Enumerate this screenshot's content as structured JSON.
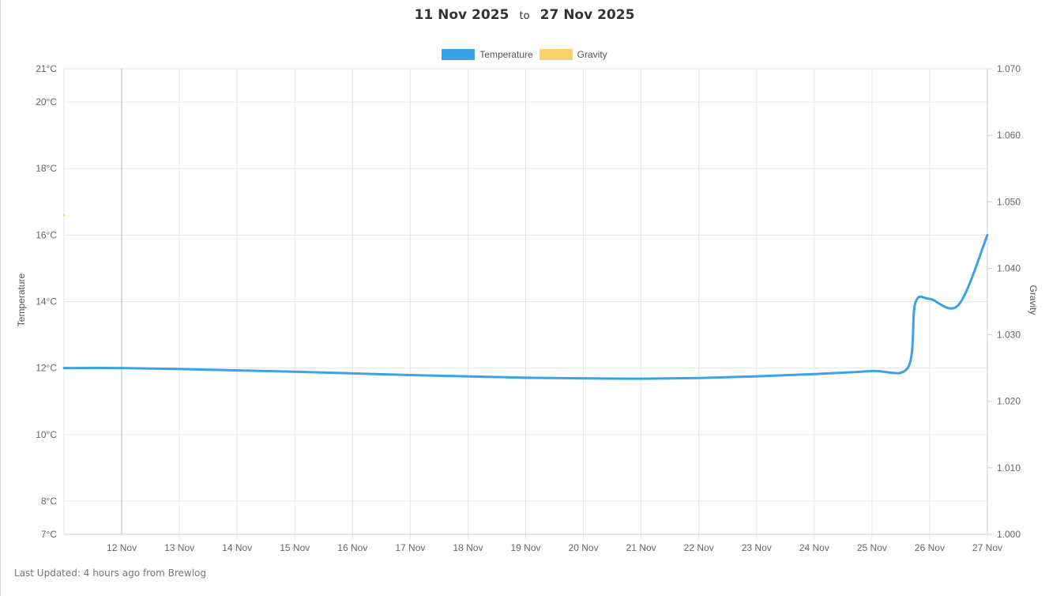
{
  "header": {
    "start_date": "11 Nov 2025",
    "separator": "to",
    "end_date": "27 Nov 2025"
  },
  "legend": [
    {
      "label": "Temperature",
      "color": "#3ca2e8"
    },
    {
      "label": "Gravity",
      "color": "#fdd26e"
    }
  ],
  "footer": {
    "last_updated": "Last Updated: 4 hours ago from Brewlog"
  },
  "chart_data": {
    "type": "line",
    "x_label_ticks": [
      "12 Nov",
      "13 Nov",
      "14 Nov",
      "15 Nov",
      "16 Nov",
      "17 Nov",
      "18 Nov",
      "19 Nov",
      "20 Nov",
      "21 Nov",
      "22 Nov",
      "23 Nov",
      "24 Nov",
      "25 Nov",
      "26 Nov",
      "27 Nov"
    ],
    "xlim": [
      "11 Nov 2025",
      "27 Nov 2025"
    ],
    "y_left": {
      "label": "Temperature",
      "ylim": [
        7,
        21
      ],
      "ticks": [
        7,
        8,
        10,
        12,
        14,
        16,
        18,
        20,
        21
      ],
      "tick_labels": [
        "7°C",
        "8°C",
        "10°C",
        "12°C",
        "14°C",
        "16°C",
        "18°C",
        "20°C",
        "21°C"
      ]
    },
    "y_right": {
      "label": "Gravity",
      "ylim": [
        1.0,
        1.07
      ],
      "ticks": [
        1.0,
        1.01,
        1.02,
        1.03,
        1.04,
        1.05,
        1.06,
        1.07
      ],
      "tick_labels": [
        "1.000",
        "1.010",
        "1.020",
        "1.030",
        "1.040",
        "1.050",
        "1.060",
        "1.070"
      ]
    },
    "grid": true,
    "legend_position": "top-center",
    "series": [
      {
        "name": "Temperature",
        "axis": "left",
        "color": "#3ca2e8",
        "points": [
          {
            "x": "11 Nov 00:00",
            "y": 12.0
          },
          {
            "x": "12 Nov 00:00",
            "y": 12.0
          },
          {
            "x": "13 Nov 00:00",
            "y": 11.97
          },
          {
            "x": "14 Nov 00:00",
            "y": 11.93
          },
          {
            "x": "15 Nov 00:00",
            "y": 11.89
          },
          {
            "x": "16 Nov 00:00",
            "y": 11.84
          },
          {
            "x": "17 Nov 00:00",
            "y": 11.79
          },
          {
            "x": "18 Nov 00:00",
            "y": 11.75
          },
          {
            "x": "19 Nov 00:00",
            "y": 11.71
          },
          {
            "x": "20 Nov 00:00",
            "y": 11.69
          },
          {
            "x": "21 Nov 00:00",
            "y": 11.68
          },
          {
            "x": "22 Nov 00:00",
            "y": 11.7
          },
          {
            "x": "23 Nov 00:00",
            "y": 11.75
          },
          {
            "x": "24 Nov 00:00",
            "y": 11.82
          },
          {
            "x": "25 Nov 00:00",
            "y": 11.91
          },
          {
            "x": "25 Nov 15:00",
            "y": 12.02
          },
          {
            "x": "25 Nov 18:00",
            "y": 13.95
          },
          {
            "x": "26 Nov 00:00",
            "y": 14.08
          },
          {
            "x": "26 Nov 12:00",
            "y": 13.9
          },
          {
            "x": "27 Nov 00:00",
            "y": 16.0
          }
        ]
      },
      {
        "name": "Gravity",
        "axis": "right",
        "color": "#fdd26e",
        "points": [
          {
            "x": "11 Nov 00:00",
            "y": 1.048
          }
        ]
      }
    ]
  }
}
